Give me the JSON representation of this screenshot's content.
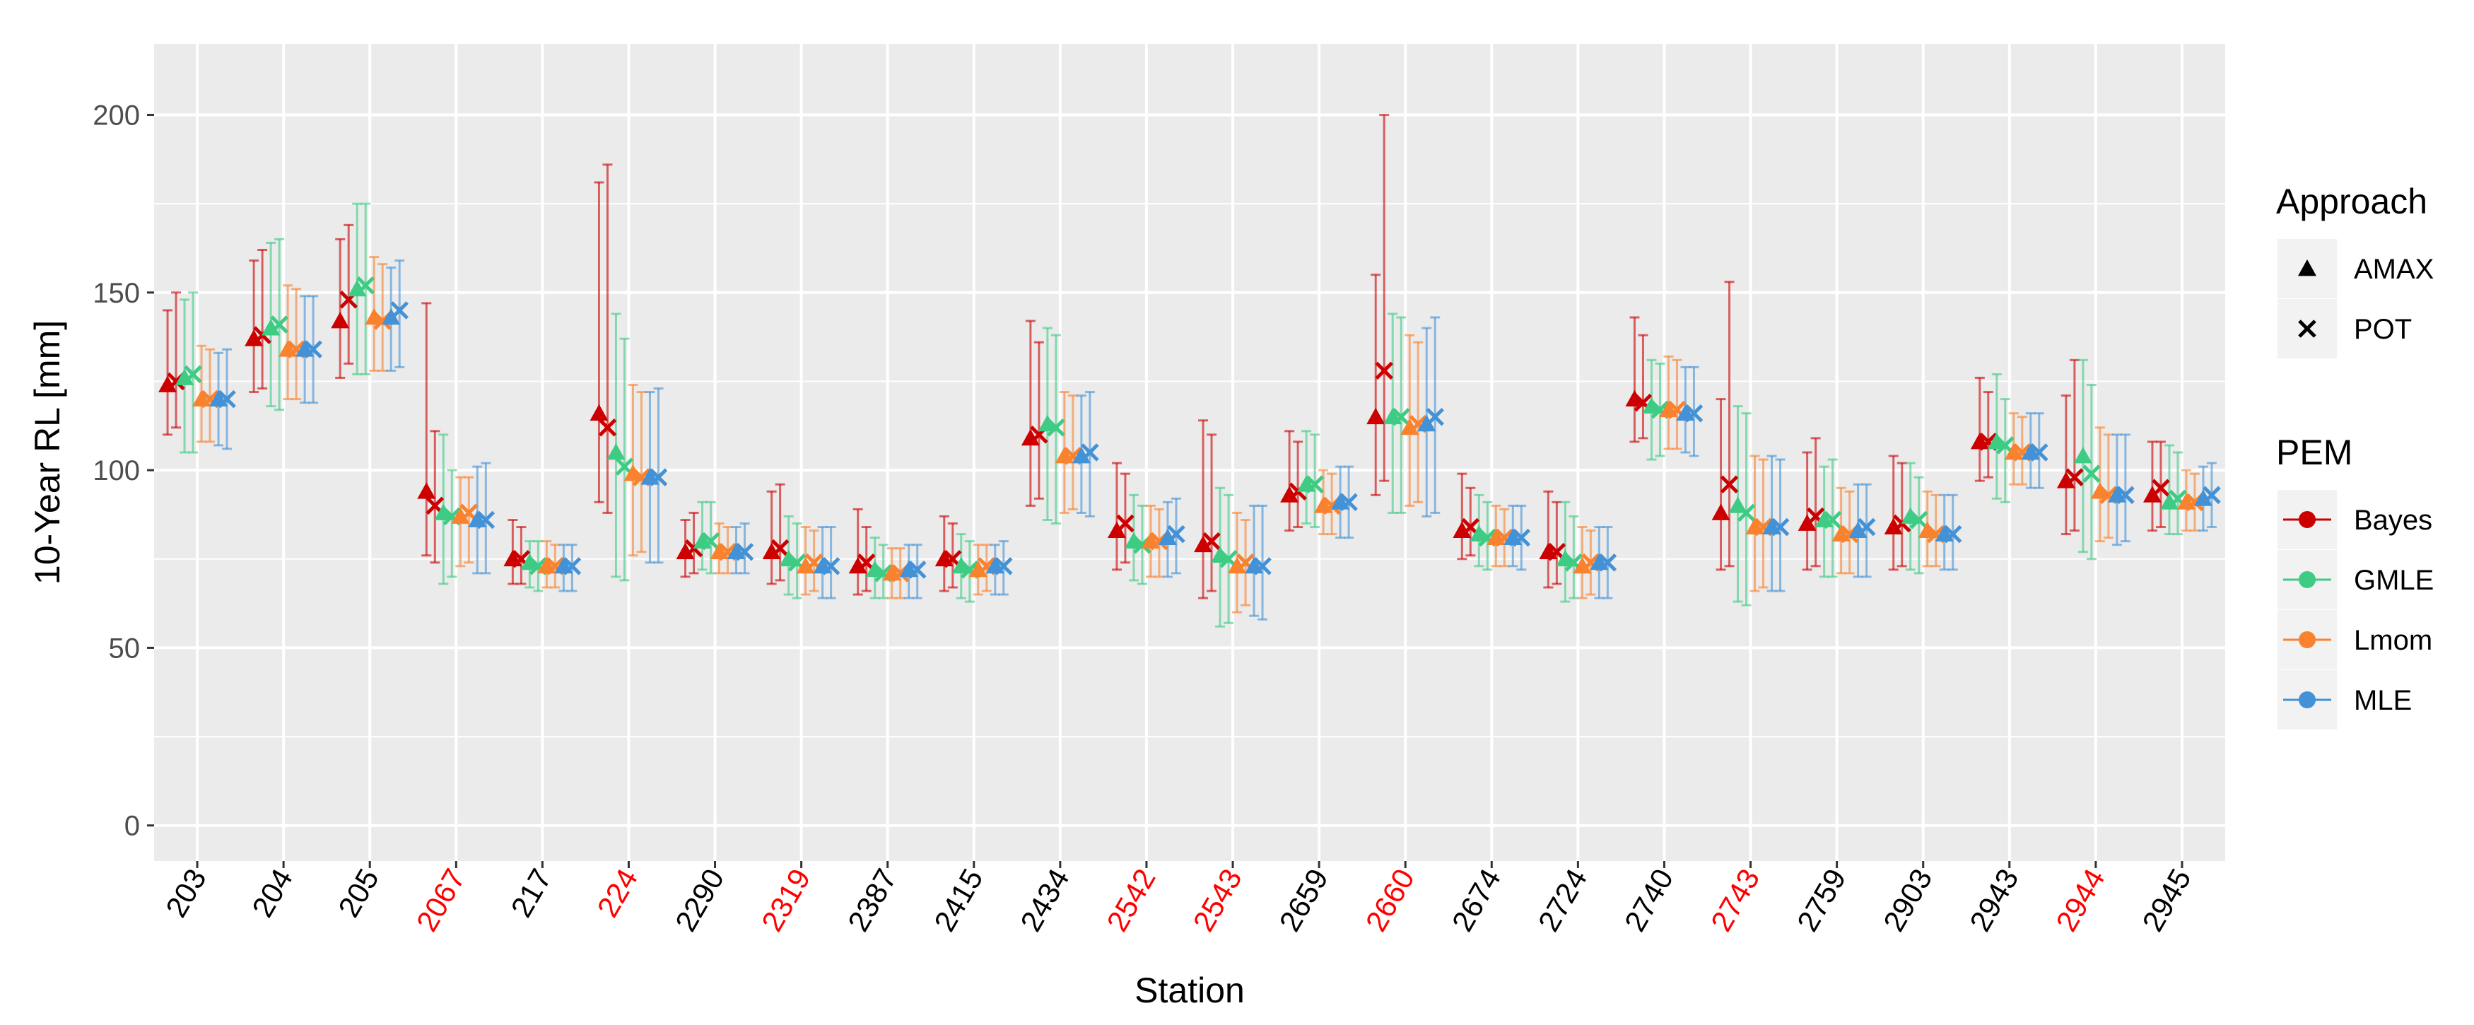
{
  "chart_data": {
    "type": "scatter",
    "xlabel": "Station",
    "ylabel": "10-Year RL [mm]",
    "ylim": [
      -10,
      220
    ],
    "yticks": [
      0,
      50,
      100,
      150,
      200
    ],
    "grid": true,
    "legend_position": "right",
    "categories": [
      "203",
      "204",
      "205",
      "2067",
      "217",
      "224",
      "2290",
      "2319",
      "2387",
      "2415",
      "2434",
      "2542",
      "2543",
      "2659",
      "2660",
      "2674",
      "2724",
      "2740",
      "2743",
      "2759",
      "2903",
      "2943",
      "2944",
      "2945"
    ],
    "highlighted_categories": [
      "2067",
      "224",
      "2319",
      "2542",
      "2543",
      "2660",
      "2743",
      "2944"
    ],
    "highlight_color": "#ff0000",
    "approach_legend": {
      "title": "Approach",
      "entries": [
        {
          "label": "AMAX",
          "shape": "triangle"
        },
        {
          "label": "POT",
          "shape": "cross"
        }
      ]
    },
    "pem_legend": {
      "title": "PEM",
      "entries": [
        {
          "label": "Bayes",
          "color": "#cc0000"
        },
        {
          "label": "GMLE",
          "color": "#3ecb83"
        },
        {
          "label": "Lmom",
          "color": "#f8822d"
        },
        {
          "label": "MLE",
          "color": "#4391d6"
        }
      ]
    },
    "series": [
      {
        "pem": "Bayes",
        "approach": "AMAX",
        "values": [
          124,
          137,
          142,
          94,
          75,
          116,
          77,
          77,
          73,
          75,
          109,
          83,
          79,
          93,
          115,
          83,
          77,
          120,
          88,
          85,
          84,
          108,
          97,
          93
        ],
        "lower": [
          110,
          122,
          126,
          76,
          68,
          91,
          70,
          68,
          65,
          66,
          90,
          72,
          64,
          83,
          93,
          75,
          67,
          108,
          72,
          72,
          72,
          97,
          82,
          83
        ],
        "upper": [
          145,
          159,
          165,
          147,
          86,
          181,
          86,
          94,
          89,
          87,
          142,
          102,
          114,
          111,
          155,
          99,
          94,
          143,
          120,
          105,
          104,
          126,
          121,
          108
        ]
      },
      {
        "pem": "Bayes",
        "approach": "POT",
        "values": [
          125,
          138,
          148,
          90,
          75,
          112,
          78,
          78,
          74,
          75,
          110,
          85,
          80,
          94,
          128,
          84,
          77,
          119,
          96,
          87,
          85,
          108,
          98,
          95
        ],
        "lower": [
          112,
          123,
          130,
          74,
          68,
          88,
          71,
          69,
          66,
          67,
          92,
          74,
          66,
          84,
          97,
          76,
          68,
          109,
          73,
          73,
          73,
          98,
          83,
          84
        ],
        "upper": [
          150,
          162,
          169,
          111,
          84,
          186,
          88,
          96,
          84,
          85,
          136,
          99,
          110,
          108,
          200,
          95,
          91,
          138,
          153,
          109,
          102,
          122,
          131,
          108
        ]
      },
      {
        "pem": "GMLE",
        "approach": "AMAX",
        "values": [
          126,
          140,
          151,
          88,
          74,
          105,
          80,
          75,
          72,
          73,
          113,
          80,
          76,
          96,
          115,
          82,
          75,
          118,
          90,
          86,
          87,
          108,
          104,
          91
        ],
        "lower": [
          105,
          118,
          127,
          68,
          67,
          70,
          72,
          65,
          64,
          64,
          86,
          69,
          56,
          85,
          88,
          73,
          63,
          103,
          63,
          70,
          72,
          92,
          77,
          82
        ],
        "upper": [
          148,
          164,
          175,
          110,
          80,
          144,
          91,
          87,
          81,
          82,
          140,
          93,
          95,
          111,
          144,
          93,
          91,
          131,
          118,
          101,
          102,
          127,
          131,
          107
        ]
      },
      {
        "pem": "GMLE",
        "approach": "POT",
        "values": [
          127,
          141,
          152,
          87,
          73,
          101,
          80,
          74,
          71,
          72,
          112,
          79,
          75,
          96,
          115,
          81,
          74,
          117,
          88,
          86,
          86,
          107,
          99,
          92
        ],
        "lower": [
          105,
          117,
          127,
          70,
          66,
          69,
          71,
          64,
          64,
          63,
          85,
          68,
          57,
          84,
          88,
          72,
          64,
          104,
          62,
          70,
          71,
          91,
          75,
          82
        ],
        "upper": [
          150,
          165,
          175,
          100,
          80,
          137,
          91,
          85,
          79,
          80,
          138,
          90,
          93,
          110,
          143,
          91,
          87,
          130,
          116,
          103,
          98,
          120,
          124,
          105
        ]
      },
      {
        "pem": "Lmom",
        "approach": "AMAX",
        "values": [
          120,
          134,
          143,
          87,
          73,
          99,
          77,
          73,
          71,
          72,
          104,
          80,
          73,
          90,
          112,
          81,
          73,
          117,
          84,
          82,
          83,
          105,
          94,
          91
        ],
        "lower": [
          108,
          120,
          128,
          73,
          67,
          76,
          71,
          65,
          64,
          65,
          88,
          70,
          60,
          82,
          90,
          73,
          64,
          106,
          66,
          71,
          73,
          96,
          80,
          83
        ],
        "upper": [
          135,
          152,
          160,
          98,
          80,
          124,
          85,
          84,
          78,
          79,
          122,
          90,
          88,
          100,
          138,
          90,
          84,
          132,
          104,
          95,
          94,
          116,
          112,
          100
        ]
      },
      {
        "pem": "Lmom",
        "approach": "POT",
        "values": [
          120,
          134,
          142,
          88,
          73,
          98,
          77,
          74,
          71,
          73,
          104,
          80,
          74,
          90,
          113,
          81,
          74,
          117,
          84,
          82,
          82,
          105,
          93,
          91
        ],
        "lower": [
          108,
          120,
          128,
          74,
          67,
          77,
          71,
          66,
          64,
          66,
          89,
          70,
          62,
          82,
          91,
          73,
          65,
          106,
          67,
          71,
          73,
          96,
          81,
          83
        ],
        "upper": [
          134,
          151,
          158,
          98,
          79,
          122,
          84,
          83,
          78,
          79,
          121,
          89,
          86,
          99,
          136,
          89,
          83,
          131,
          103,
          94,
          93,
          115,
          110,
          99
        ]
      },
      {
        "pem": "MLE",
        "approach": "AMAX",
        "values": [
          120,
          134,
          143,
          86,
          73,
          98,
          77,
          73,
          72,
          73,
          104,
          81,
          73,
          91,
          113,
          81,
          74,
          116,
          84,
          83,
          82,
          105,
          93,
          92
        ],
        "lower": [
          107,
          119,
          128,
          71,
          66,
          74,
          71,
          64,
          64,
          65,
          88,
          70,
          59,
          81,
          87,
          73,
          64,
          105,
          66,
          70,
          72,
          95,
          79,
          83
        ],
        "upper": [
          133,
          149,
          157,
          101,
          79,
          122,
          84,
          84,
          79,
          79,
          121,
          91,
          90,
          101,
          140,
          90,
          84,
          129,
          104,
          96,
          93,
          116,
          110,
          101
        ]
      },
      {
        "pem": "MLE",
        "approach": "POT",
        "values": [
          120,
          134,
          145,
          86,
          73,
          98,
          77,
          73,
          72,
          73,
          105,
          82,
          73,
          91,
          115,
          81,
          74,
          116,
          84,
          84,
          82,
          105,
          93,
          93
        ],
        "lower": [
          106,
          119,
          129,
          71,
          66,
          74,
          71,
          64,
          64,
          65,
          87,
          71,
          58,
          81,
          88,
          72,
          64,
          104,
          66,
          70,
          72,
          95,
          80,
          84
        ],
        "upper": [
          134,
          149,
          159,
          102,
          79,
          123,
          85,
          84,
          79,
          80,
          122,
          92,
          90,
          101,
          143,
          90,
          84,
          129,
          103,
          96,
          93,
          116,
          110,
          102
        ]
      }
    ]
  }
}
